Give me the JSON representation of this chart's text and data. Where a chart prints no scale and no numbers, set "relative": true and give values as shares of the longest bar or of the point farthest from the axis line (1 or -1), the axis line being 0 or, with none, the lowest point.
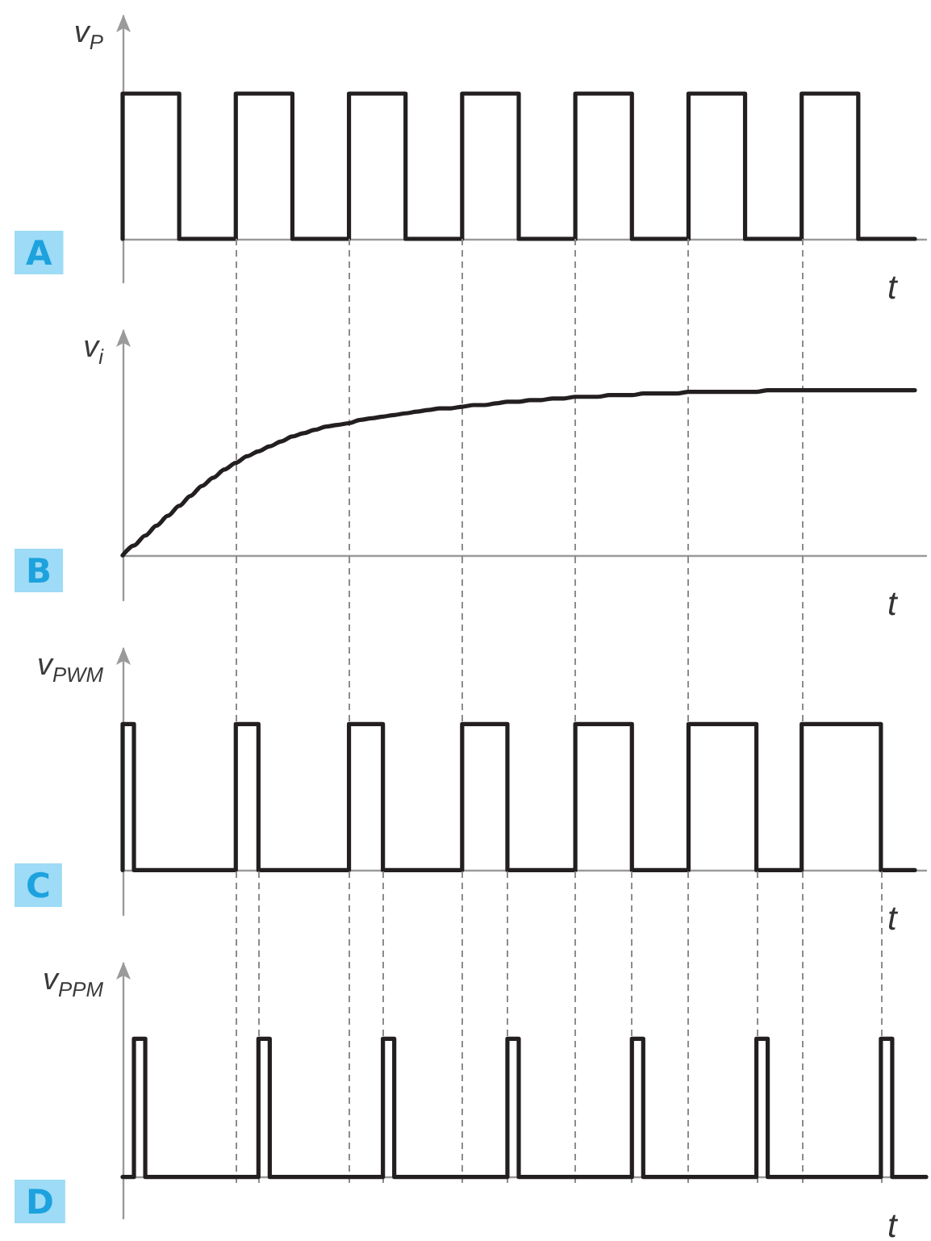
{
  "chart_data": [
    {
      "type": "step",
      "title": "A",
      "ylabel": "v$_{P}$",
      "xlabel": "t",
      "relative": true,
      "categories": [
        null,
        null,
        null,
        null,
        null,
        null,
        null,
        null,
        null,
        null,
        null,
        null,
        null,
        null,
        null,
        null,
        null,
        null,
        null,
        null,
        null,
        null,
        null,
        null,
        null,
        null,
        null,
        null,
        null,
        null,
        null,
        null,
        null,
        null,
        null,
        null,
        null,
        null,
        null,
        null,
        null,
        null,
        null,
        null,
        null,
        null,
        null,
        null,
        null,
        null,
        null,
        null,
        null,
        null,
        null,
        null,
        null,
        null,
        null,
        null,
        null,
        null,
        null,
        null,
        null,
        null,
        null,
        null,
        null,
        null,
        null,
        null
      ],
      "series": [
        {
          "color": "#231f20",
          "values": [
            0,
            1,
            1,
            1,
            1,
            1,
            0,
            0,
            0,
            0,
            0,
            1,
            1,
            1,
            1,
            1,
            0,
            0,
            0,
            0,
            0,
            1,
            1,
            1,
            1,
            1,
            0,
            0,
            0,
            0,
            0,
            1,
            1,
            1,
            1,
            1,
            0,
            0,
            0,
            0,
            0,
            1,
            1,
            1,
            1,
            1,
            0,
            0,
            0,
            0,
            0,
            1,
            1,
            1,
            1,
            1,
            0,
            0,
            0,
            0,
            0,
            1,
            1,
            1,
            1,
            1,
            0,
            0,
            0,
            0,
            0,
            null
          ]
        }
      ]
    },
    {
      "type": "line",
      "title": "B",
      "ylabel": "v$_{i}$",
      "xlabel": "t",
      "relative": true,
      "grid": "x",
      "categories": [
        null,
        null,
        null,
        null,
        null,
        null,
        null,
        null,
        null,
        null,
        null,
        null,
        null,
        null,
        null,
        null,
        null,
        null,
        null,
        null,
        null,
        null,
        null,
        null,
        null,
        null,
        null,
        null,
        null,
        null,
        null,
        null,
        null,
        null,
        null,
        null,
        null,
        null,
        null,
        null,
        null,
        null,
        null,
        null,
        null,
        null,
        null,
        null,
        null,
        null,
        null,
        null,
        null,
        null,
        null,
        null,
        null,
        null,
        null,
        null,
        null,
        null,
        null,
        null,
        null,
        null,
        null,
        null,
        null,
        null,
        null,
        null
      ],
      "series": [
        {
          "color": "#231f20",
          "values": [
            0,
            0.06,
            0.12,
            0.18,
            0.24,
            0.3,
            0.36,
            0.42,
            0.47,
            0.52,
            0.56,
            0.6,
            0.63,
            0.66,
            0.69,
            0.72,
            0.74,
            0.76,
            0.78,
            0.79,
            0.8,
            0.82,
            0.83,
            0.84,
            0.85,
            0.86,
            0.87,
            0.88,
            0.89,
            0.89,
            0.9,
            0.91,
            0.91,
            0.92,
            0.93,
            0.93,
            0.94,
            0.94,
            0.95,
            0.95,
            0.96,
            0.96,
            0.96,
            0.97,
            0.97,
            0.97,
            0.98,
            0.98,
            0.98,
            0.98,
            0.99,
            0.99,
            0.99,
            0.99,
            0.99,
            0.99,
            0.99,
            1,
            1,
            1,
            1,
            1,
            1,
            1,
            1,
            1,
            1,
            1,
            1,
            1,
            1,
            null
          ]
        }
      ]
    },
    {
      "type": "step",
      "title": "C",
      "ylabel": "v$_{PWM}$",
      "xlabel": "t",
      "relative": true,
      "grid": "x",
      "categories": [
        null,
        null,
        null,
        null,
        null,
        null,
        null,
        null,
        null,
        null,
        null,
        null,
        null,
        null,
        null,
        null,
        null,
        null,
        null,
        null,
        null,
        null,
        null,
        null,
        null,
        null,
        null,
        null,
        null,
        null,
        null,
        null,
        null,
        null,
        null,
        null,
        null,
        null,
        null,
        null,
        null,
        null,
        null,
        null,
        null,
        null,
        null,
        null,
        null,
        null,
        null,
        null,
        null,
        null,
        null,
        null,
        null,
        null,
        null,
        null,
        null,
        null,
        null,
        null,
        null,
        null,
        null,
        null,
        null,
        null,
        null,
        null
      ],
      "series": [
        {
          "color": "#231f20",
          "values": [
            0,
            1,
            0,
            0,
            0,
            0,
            0,
            0,
            0,
            0,
            0,
            1,
            1,
            0,
            0,
            0,
            0,
            0,
            0,
            0,
            0,
            1,
            1,
            1,
            0,
            0,
            0,
            0,
            0,
            0,
            0,
            1,
            1,
            1,
            1,
            0,
            0,
            0,
            0,
            0,
            0,
            1,
            1,
            1,
            1,
            1,
            0,
            0,
            0,
            0,
            0,
            1,
            1,
            1,
            1,
            1,
            1,
            0,
            0,
            0,
            0,
            1,
            1,
            1,
            1,
            1,
            1,
            1,
            0,
            0,
            0,
            null
          ]
        }
      ]
    },
    {
      "type": "step",
      "title": "D",
      "ylabel": "v$_{PPM}$",
      "xlabel": "t",
      "relative": true,
      "grid": "x",
      "categories": [
        null,
        null,
        null,
        null,
        null,
        null,
        null,
        null,
        null,
        null,
        null,
        null,
        null,
        null,
        null,
        null,
        null,
        null,
        null,
        null,
        null,
        null,
        null,
        null,
        null,
        null,
        null,
        null,
        null,
        null,
        null,
        null,
        null,
        null,
        null,
        null,
        null,
        null,
        null,
        null,
        null,
        null,
        null,
        null,
        null,
        null,
        null,
        null,
        null,
        null,
        null,
        null,
        null,
        null,
        null,
        null,
        null,
        null,
        null,
        null,
        null,
        null,
        null,
        null,
        null,
        null,
        null,
        null,
        null,
        null,
        null,
        null
      ],
      "series": [
        {
          "color": "#231f20",
          "values": [
            0,
            0,
            1,
            0,
            0,
            0,
            0,
            0,
            0,
            0,
            0,
            0,
            0,
            1,
            0,
            0,
            0,
            0,
            0,
            0,
            0,
            0,
            0,
            0,
            1,
            0,
            0,
            0,
            0,
            0,
            0,
            0,
            0,
            0,
            0,
            1,
            0,
            0,
            0,
            0,
            0,
            0,
            0,
            0,
            0,
            0,
            1,
            0,
            0,
            0,
            0,
            0,
            0,
            0,
            0,
            0,
            0,
            1,
            0,
            0,
            0,
            0,
            0,
            0,
            0,
            0,
            0,
            0,
            1,
            0,
            0,
            0
          ]
        }
      ]
    }
  ]
}
